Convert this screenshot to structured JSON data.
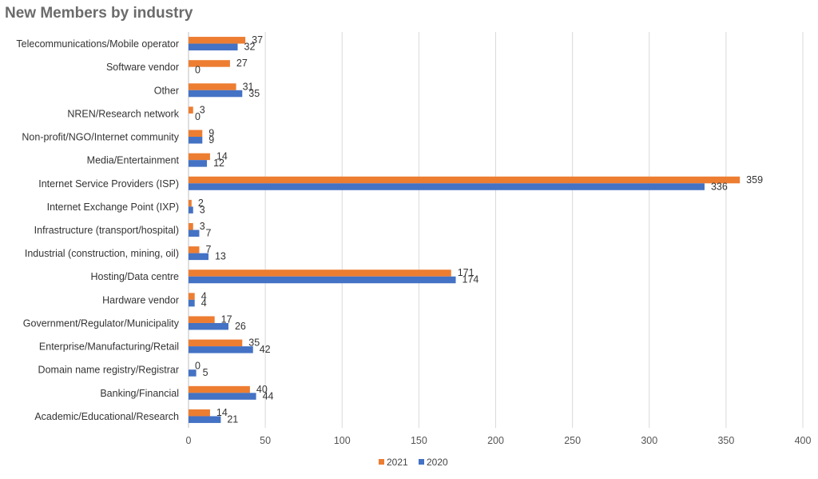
{
  "chart_data": {
    "type": "bar",
    "orientation": "horizontal",
    "title": "New Members by industry",
    "categories": [
      "Telecommunications/Mobile operator",
      "Software vendor",
      "Other",
      "NREN/Research network",
      "Non-profit/NGO/Internet community",
      "Media/Entertainment",
      "Internet Service Providers (ISP)",
      "Internet Exchange Point (IXP)",
      "Infrastructure (transport/hospital)",
      "Industrial (construction, mining, oil)",
      "Hosting/Data centre",
      "Hardware vendor",
      "Government/Regulator/Municipality",
      "Enterprise/Manufacturing/Retail",
      "Domain name registry/Registrar",
      "Banking/Financial",
      "Academic/Educational/Research"
    ],
    "series": [
      {
        "name": "2021",
        "color": "#ED7D31",
        "values": [
          37,
          27,
          31,
          3,
          9,
          14,
          359,
          2,
          3,
          7,
          171,
          4,
          17,
          35,
          0,
          40,
          14
        ]
      },
      {
        "name": "2020",
        "color": "#4472C4",
        "values": [
          32,
          0,
          35,
          0,
          9,
          12,
          336,
          3,
          7,
          13,
          174,
          4,
          26,
          42,
          5,
          44,
          21
        ]
      }
    ],
    "xlim": [
      0,
      400
    ],
    "xticks": [
      0,
      50,
      100,
      150,
      200,
      250,
      300,
      350,
      400
    ],
    "grid": true,
    "legend": "bottom",
    "xlabel": "",
    "ylabel": ""
  }
}
